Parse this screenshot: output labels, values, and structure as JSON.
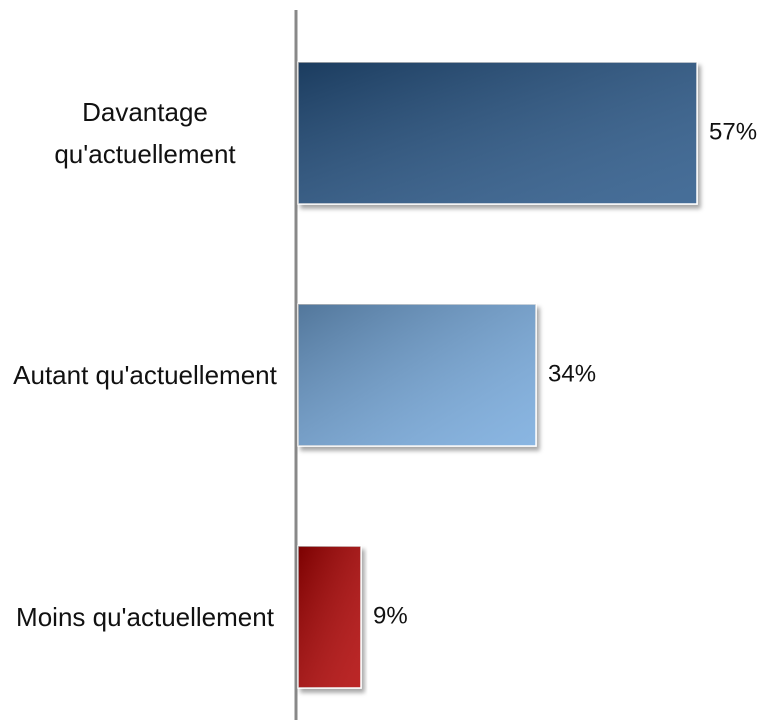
{
  "chart_data": {
    "type": "bar",
    "orientation": "horizontal",
    "categories": [
      "Davantage qu'actuellement",
      "Autant qu'actuellement",
      "Moins qu'actuellement"
    ],
    "values": [
      57,
      34,
      9
    ],
    "value_labels": [
      "57%",
      "34%",
      "9%"
    ],
    "colors": [
      "#265487",
      "#74a9dd",
      "#b00000"
    ]
  }
}
